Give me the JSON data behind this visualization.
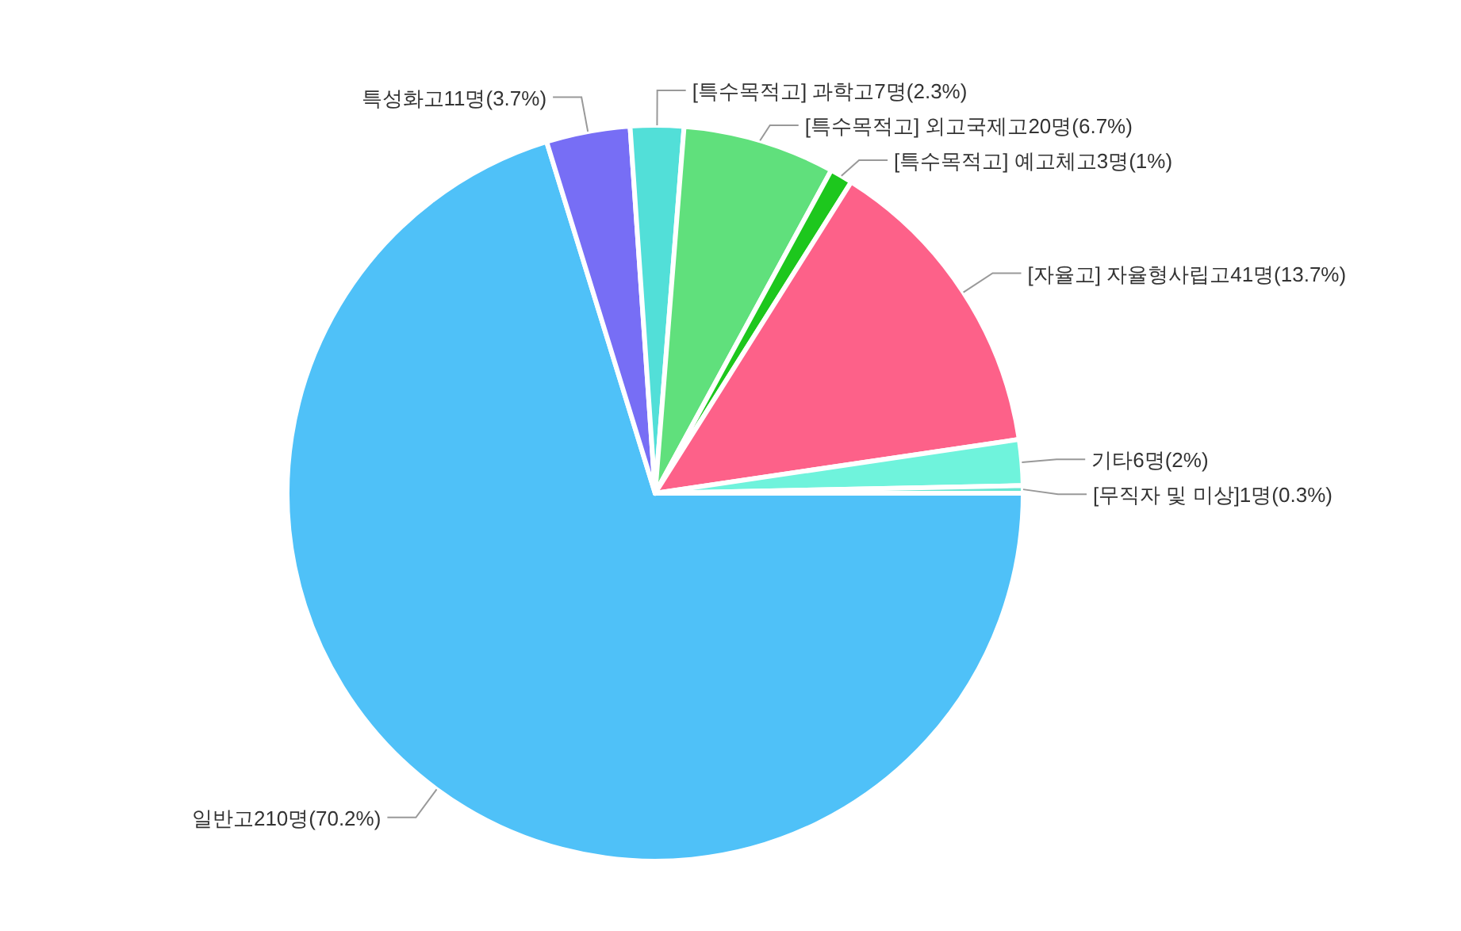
{
  "chart_data": {
    "type": "pie",
    "categories": [
      "일반고210명(70.2%)",
      "특성화고11명(3.7%)",
      "[특수목적고] 과학고7명(2.3%)",
      "[특수목적고] 외고국제고20명(6.7%)",
      "[특수목적고] 예고체고3명(1%)",
      "[자율고] 자율형사립고41명(13.7%)",
      "기타6명(2%)",
      "[무직자 및 미상]1명(0.3%)"
    ],
    "values": [
      210,
      11,
      7,
      20,
      3,
      41,
      6,
      1
    ],
    "colors": [
      "#4fc1f8",
      "#776ef5",
      "#52dfd8",
      "#60e07c",
      "#1dc71d",
      "#fd6189",
      "#6ff3dc",
      "#6ae6d1"
    ]
  }
}
